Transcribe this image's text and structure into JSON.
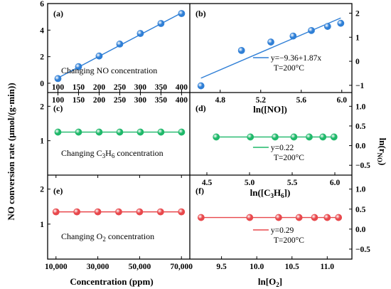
{
  "chart_data": [
    {
      "panel": "(a)",
      "type": "scatter",
      "annotation": "Changing NO concentration",
      "x": [
        100,
        150,
        200,
        250,
        300,
        350,
        400
      ],
      "y": [
        0.35,
        1.25,
        2.05,
        2.95,
        3.75,
        4.5,
        5.25
      ],
      "fit_line": [
        [
          100,
          0.4
        ],
        [
          400,
          5.3
        ]
      ],
      "xlim": [
        75,
        420
      ],
      "ylim": [
        -0.7,
        6
      ],
      "xticks": [
        "100",
        "150",
        "200",
        "250",
        "300",
        "350",
        "400"
      ],
      "yticks": [
        "0",
        "2",
        "4",
        "6"
      ],
      "marker_color": "#2f7fd6",
      "line_color": "#2f7fd6"
    },
    {
      "panel": "(b)",
      "type": "scatter",
      "x": [
        4.61,
        5.01,
        5.3,
        5.52,
        5.7,
        5.86,
        5.99
      ],
      "y": [
        -1.02,
        0.45,
        0.8,
        1.05,
        1.28,
        1.45,
        1.58
      ],
      "fit_line": [
        [
          4.61,
          -0.7
        ],
        [
          5.99,
          1.8
        ]
      ],
      "xlim": [
        4.5,
        6.1
      ],
      "ylim": [
        -1.3,
        2.4
      ],
      "xticks": [
        "4.8",
        "5.2",
        "5.6",
        "6.0"
      ],
      "yticks": [
        "-1",
        "0",
        "1",
        "2"
      ],
      "legend": [
        "y=-9.36+1.87x",
        "T=200°C"
      ],
      "marker_color": "#2f7fd6",
      "line_color": "#2f7fd6"
    },
    {
      "panel": "(c)",
      "type": "scatter",
      "annotation": "Changing C3H6 concentration",
      "x": [
        100,
        150,
        200,
        250,
        300,
        350,
        400
      ],
      "y": [
        1.25,
        1.25,
        1.25,
        1.25,
        1.25,
        1.25,
        1.25
      ],
      "xlim": [
        75,
        420
      ],
      "ylim": [
        0,
        2.4
      ],
      "xticks": [
        "100",
        "150",
        "200",
        "250",
        "300",
        "350",
        "400"
      ],
      "yticks": [
        "1",
        "2"
      ],
      "marker_color": "#1fb86a",
      "line_color": "#1fb86a"
    },
    {
      "panel": "(d)",
      "type": "scatter",
      "x": [
        4.61,
        5.01,
        5.3,
        5.52,
        5.7,
        5.86,
        5.99
      ],
      "y": [
        0.22,
        0.22,
        0.22,
        0.22,
        0.22,
        0.22,
        0.22
      ],
      "xlim": [
        4.3,
        6.2
      ],
      "ylim": [
        -0.75,
        1.35
      ],
      "xticks": [
        "4.5",
        "5.0",
        "5.5",
        "6.0"
      ],
      "yticks": [
        "1.0",
        "0.5",
        "0.0",
        "-0.5"
      ],
      "legend": [
        "y=0.22",
        "T=200°C"
      ],
      "marker_color": "#1fb86a",
      "line_color": "#1fb86a"
    },
    {
      "panel": "(e)",
      "type": "scatter",
      "annotation": "Changing O2 concentration",
      "x": [
        10000,
        20000,
        30000,
        40000,
        50000,
        60000,
        70000
      ],
      "y": [
        1.35,
        1.35,
        1.35,
        1.35,
        1.35,
        1.35,
        1.35
      ],
      "xlim": [
        6000,
        74000
      ],
      "ylim": [
        0,
        2.4
      ],
      "xticks": [
        "10,000",
        "30,000",
        "50,000",
        "70,000"
      ],
      "yticks": [
        "1",
        "2"
      ],
      "marker_color": "#e8484c",
      "line_color": "#e8484c"
    },
    {
      "panel": "(f)",
      "type": "scatter",
      "x": [
        9.21,
        9.9,
        10.31,
        10.6,
        10.82,
        11.0,
        11.16
      ],
      "y": [
        0.29,
        0.29,
        0.29,
        0.29,
        0.29,
        0.29,
        0.29
      ],
      "xlim": [
        9.05,
        11.35
      ],
      "ylim": [
        -0.75,
        1.35
      ],
      "xticks": [
        "9.5",
        "10.0",
        "10.5",
        "11.0"
      ],
      "yticks": [
        "1.0",
        "0.5",
        "0.0",
        "-0.5"
      ],
      "legend": [
        "y=0.29",
        "T=200°C"
      ],
      "marker_color": "#e8484c",
      "line_color": "#e8484c"
    }
  ],
  "labels": {
    "ylabel_left": "NO conversion rate (μmol/(g·min))",
    "ylabel_right": "ln(rNO)",
    "xlabel_left_bottom": "Concentration (ppm)",
    "xlabel_b": "ln([NO])",
    "xlabel_d": "ln([C3H6])",
    "xlabel_f": "ln[O2]"
  }
}
